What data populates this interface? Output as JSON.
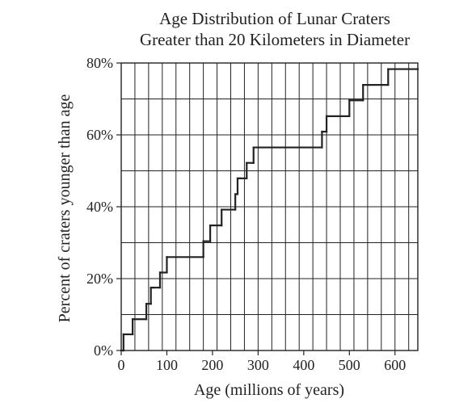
{
  "chart_data": {
    "type": "line",
    "title_lines": [
      "Age Distribution of Lunar Craters",
      "Greater than 20 Kilometers in Diameter"
    ],
    "xlabel": "Age (millions of years)",
    "ylabel": "Percent of craters younger than age",
    "xlim": [
      0,
      650
    ],
    "ylim": [
      0,
      80
    ],
    "x_ticks": [
      0,
      100,
      200,
      300,
      400,
      500,
      600
    ],
    "x_tick_labels": [
      "0",
      "100",
      "200",
      "300",
      "400",
      "500",
      "600"
    ],
    "y_ticks": [
      0,
      20,
      40,
      60,
      80
    ],
    "y_tick_labels": [
      "0%",
      "20%",
      "40%",
      "60%",
      "80%"
    ],
    "grid": true,
    "grid_x_step": 30,
    "grid_y_step": 10,
    "line_color": "#222222",
    "series": [
      {
        "step": "post",
        "x": [
          0,
          5,
          25,
          55,
          65,
          70,
          85,
          100,
          180,
          195,
          220,
          250,
          255,
          260,
          275,
          290,
          440,
          450,
          500,
          530,
          585,
          650
        ],
        "values": [
          0,
          4.5,
          8.7,
          13,
          17.5,
          17.5,
          21.7,
          26,
          30.4,
          34.8,
          39.2,
          43.5,
          47.9,
          47.9,
          52.2,
          56.5,
          60.9,
          65.2,
          69.6,
          73.9,
          78.3,
          78.3
        ]
      }
    ]
  }
}
